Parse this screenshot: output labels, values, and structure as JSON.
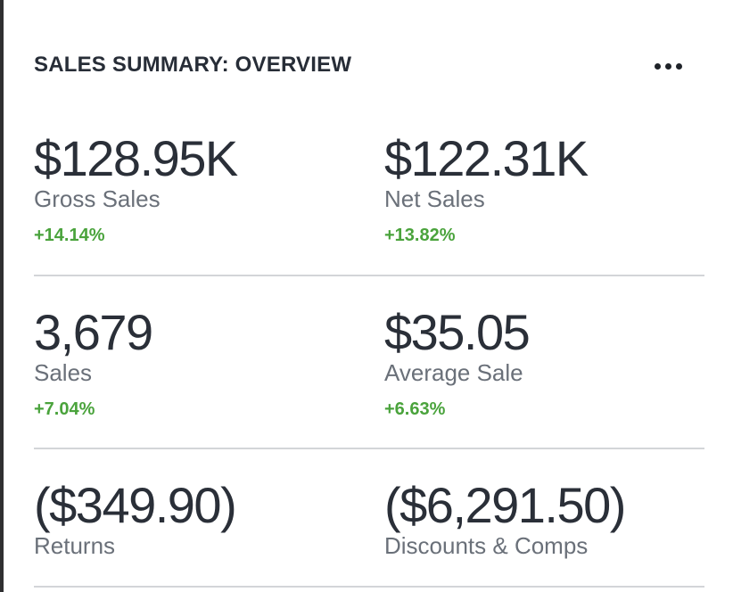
{
  "card": {
    "title": "SALES SUMMARY: OVERVIEW",
    "more_icon": "more-horizontal-icon"
  },
  "metrics": [
    {
      "value": "$128.95K",
      "label": "Gross Sales",
      "change": "+14.14%"
    },
    {
      "value": "$122.31K",
      "label": "Net Sales",
      "change": "+13.82%"
    },
    {
      "value": "3,679",
      "label": "Sales",
      "change": "+7.04%"
    },
    {
      "value": "$35.05",
      "label": "Average Sale",
      "change": "+6.63%"
    },
    {
      "value": "($349.90)",
      "label": "Returns"
    },
    {
      "value": "($6,291.50)",
      "label": "Discounts & Comps"
    }
  ],
  "colors": {
    "text": "#2a2f38",
    "muted": "#6a7079",
    "positive": "#4aa33c",
    "divider": "#d3d5d8"
  }
}
